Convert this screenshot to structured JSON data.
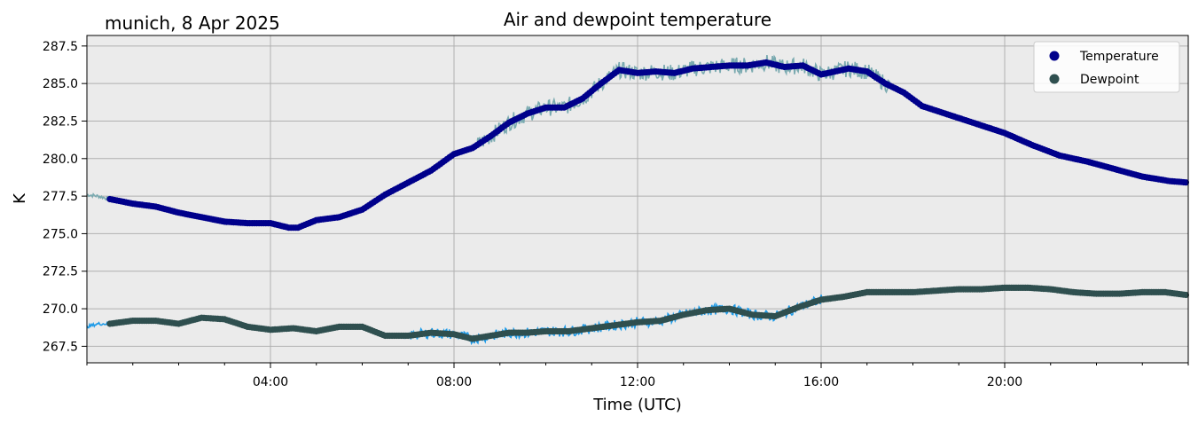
{
  "chart_data": {
    "type": "line",
    "title": "Air and dewpoint temperature",
    "location_date": "munich, 8 Apr 2025",
    "xlabel": "Time (UTC)",
    "ylabel": "K",
    "x_unit": "hours",
    "xlim": [
      0,
      24
    ],
    "ylim": [
      266.4,
      288.2
    ],
    "x_ticks": [
      {
        "value": 4,
        "label": "04:00"
      },
      {
        "value": 8,
        "label": "08:00"
      },
      {
        "value": 12,
        "label": "12:00"
      },
      {
        "value": 16,
        "label": "16:00"
      },
      {
        "value": 20,
        "label": "20:00"
      }
    ],
    "y_ticks": [
      {
        "value": 267.5,
        "label": "267.5"
      },
      {
        "value": 270.0,
        "label": "270.0"
      },
      {
        "value": 272.5,
        "label": "272.5"
      },
      {
        "value": 275.0,
        "label": "275.0"
      },
      {
        "value": 277.5,
        "label": "277.5"
      },
      {
        "value": 280.0,
        "label": "280.0"
      },
      {
        "value": 282.5,
        "label": "282.5"
      },
      {
        "value": 285.0,
        "label": "285.0"
      },
      {
        "value": 287.5,
        "label": "287.5"
      }
    ],
    "grid": true,
    "legend_position": "top-right",
    "series": [
      {
        "name": "Temperature",
        "marker_color": "#00008b",
        "raw_color": "#7aaab0",
        "x": [
          0.0,
          0.25,
          0.5,
          1.0,
          1.5,
          2.0,
          2.5,
          3.0,
          3.5,
          4.0,
          4.4,
          4.6,
          5.0,
          5.5,
          6.0,
          6.5,
          7.0,
          7.5,
          8.0,
          8.4,
          8.8,
          9.2,
          9.6,
          10.0,
          10.4,
          10.8,
          11.2,
          11.6,
          12.0,
          12.4,
          12.8,
          13.2,
          13.6,
          14.0,
          14.4,
          14.8,
          15.2,
          15.6,
          16.0,
          16.3,
          16.6,
          17.0,
          17.4,
          17.8,
          18.2,
          18.8,
          19.4,
          20.0,
          20.6,
          21.2,
          21.8,
          22.4,
          23.0,
          23.6,
          24.0
        ],
        "values": [
          277.6,
          277.5,
          277.3,
          277.0,
          276.8,
          276.4,
          276.1,
          275.8,
          275.7,
          275.7,
          275.4,
          275.4,
          275.9,
          276.1,
          276.6,
          277.6,
          278.4,
          279.2,
          280.3,
          280.7,
          281.5,
          282.4,
          283.0,
          283.4,
          283.4,
          284.0,
          285.0,
          285.9,
          285.7,
          285.8,
          285.7,
          286.0,
          286.1,
          286.2,
          286.2,
          286.4,
          286.1,
          286.2,
          285.6,
          285.8,
          286.0,
          285.8,
          285.0,
          284.4,
          283.5,
          282.9,
          282.3,
          281.7,
          280.9,
          280.2,
          279.8,
          279.3,
          278.8,
          278.5,
          278.4
        ]
      },
      {
        "name": "Dewpoint",
        "marker_color": "#2f4f4f",
        "raw_color": "#1e9be8",
        "x": [
          0.0,
          0.25,
          0.5,
          1.0,
          1.5,
          2.0,
          2.5,
          3.0,
          3.5,
          4.0,
          4.5,
          5.0,
          5.5,
          6.0,
          6.5,
          7.0,
          7.5,
          8.0,
          8.4,
          8.8,
          9.2,
          9.6,
          10.0,
          10.5,
          11.0,
          11.5,
          12.0,
          12.5,
          13.0,
          13.5,
          14.0,
          14.5,
          15.0,
          15.5,
          16.0,
          16.5,
          17.0,
          17.5,
          18.0,
          18.5,
          19.0,
          19.5,
          20.0,
          20.5,
          21.0,
          21.5,
          22.0,
          22.5,
          23.0,
          23.5,
          24.0
        ],
        "values": [
          268.8,
          269.0,
          269.0,
          269.2,
          269.2,
          269.0,
          269.4,
          269.3,
          268.8,
          268.6,
          268.7,
          268.5,
          268.8,
          268.8,
          268.2,
          268.2,
          268.4,
          268.3,
          268.0,
          268.2,
          268.4,
          268.4,
          268.5,
          268.5,
          268.7,
          268.9,
          269.1,
          269.2,
          269.6,
          269.9,
          270.0,
          269.6,
          269.5,
          270.1,
          270.6,
          270.8,
          271.1,
          271.1,
          271.1,
          271.2,
          271.3,
          271.3,
          271.4,
          271.4,
          271.3,
          271.1,
          271.0,
          271.0,
          271.1,
          271.1,
          270.9
        ]
      }
    ]
  },
  "colors": {
    "plot_background": "#ebebeb",
    "grid": "#b0b0b0",
    "axes": "#000000"
  }
}
